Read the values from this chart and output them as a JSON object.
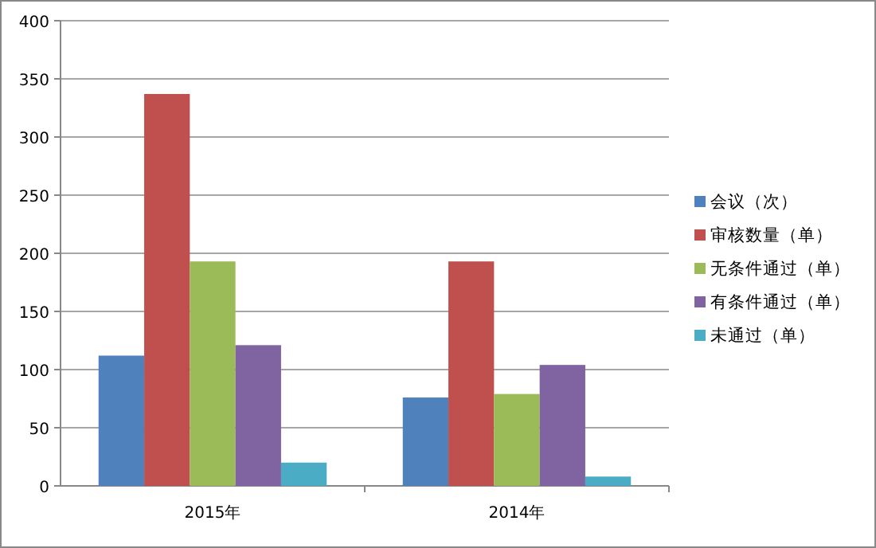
{
  "chart_data": {
    "type": "bar",
    "categories": [
      "2015年",
      "2014年"
    ],
    "series": [
      {
        "name": "会议（次）",
        "color": "#4f81bd",
        "values": [
          112,
          76
        ]
      },
      {
        "name": "审核数量（单）",
        "color": "#c0504d",
        "values": [
          337,
          193
        ]
      },
      {
        "name": "无条件通过（单）",
        "color": "#9bbb59",
        "values": [
          193,
          79
        ]
      },
      {
        "name": "有条件通过（单）",
        "color": "#8064a2",
        "values": [
          121,
          104
        ]
      },
      {
        "name": "未通过（单）",
        "color": "#4bacc6",
        "values": [
          20,
          8
        ]
      }
    ],
    "ylim": [
      0,
      400
    ],
    "yticks": [
      0,
      50,
      100,
      150,
      200,
      250,
      300,
      350,
      400
    ],
    "grid": "y",
    "legend": "right"
  }
}
